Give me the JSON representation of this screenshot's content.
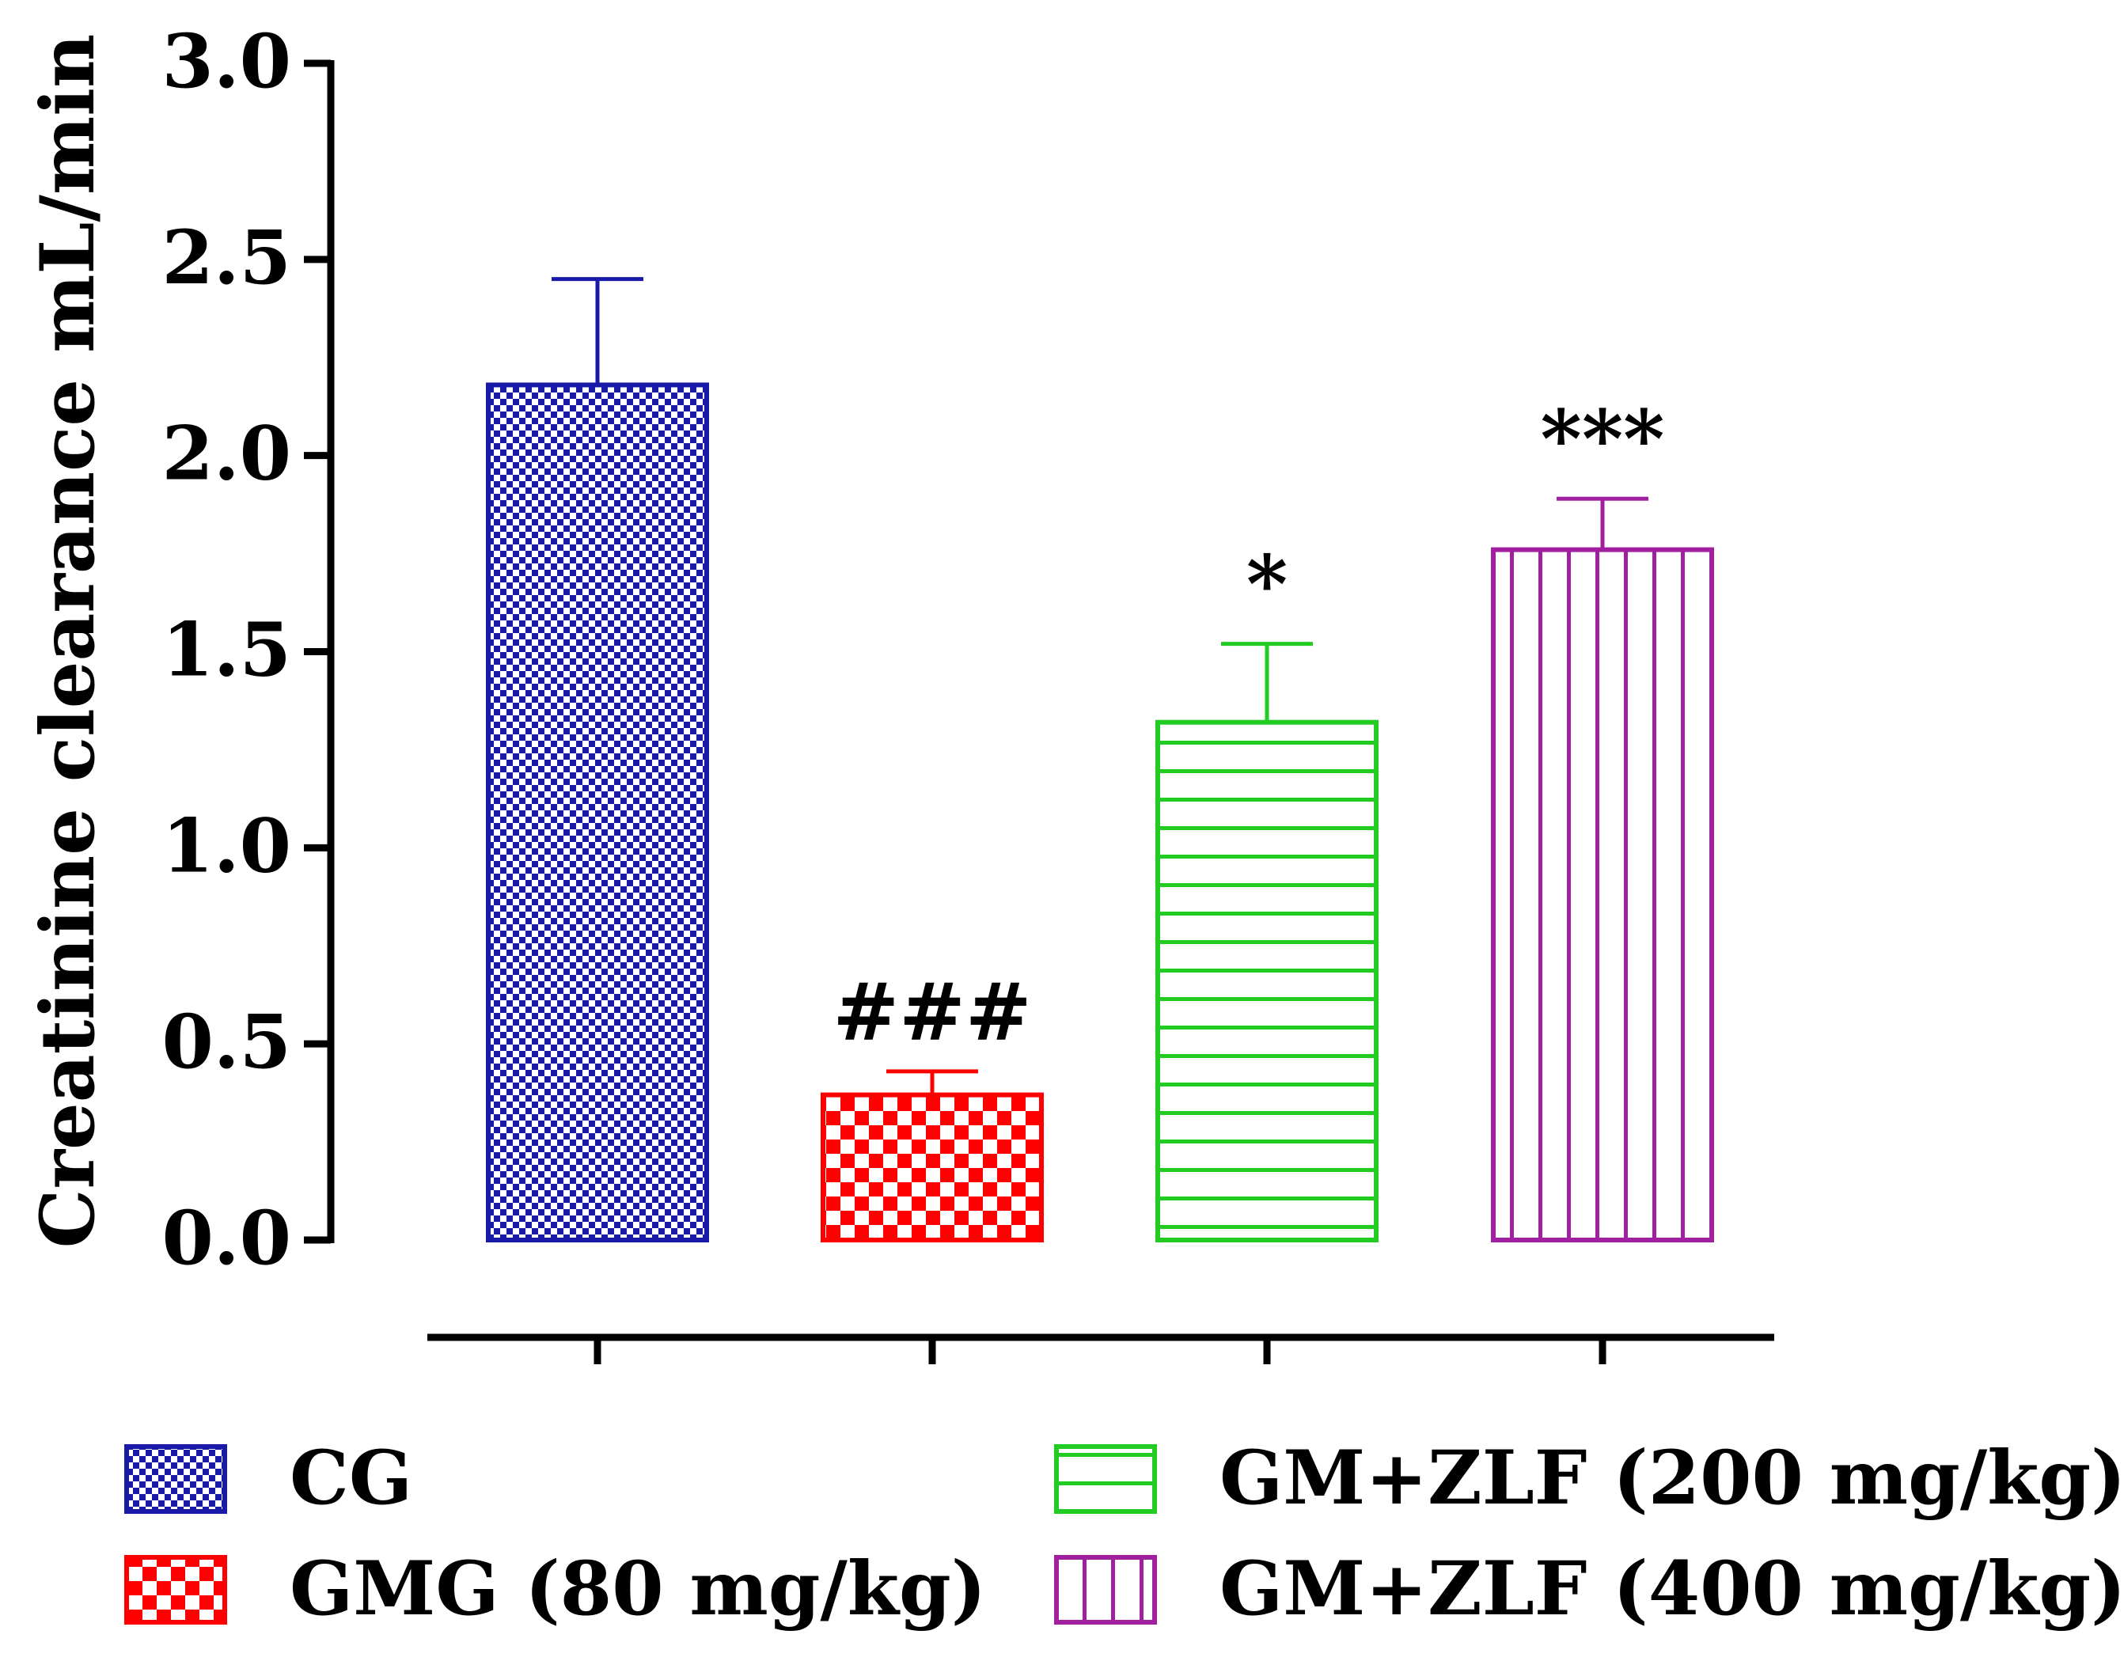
{
  "chart_data": {
    "type": "bar",
    "title": "",
    "xlabel": "",
    "ylabel": "Creatinine clearance mL/min",
    "ylim": [
      0,
      3.0
    ],
    "yticks": [
      0.0,
      0.5,
      1.0,
      1.5,
      2.0,
      2.5,
      3.0
    ],
    "ytick_labels": [
      "0.0",
      "0.5",
      "1.0",
      "1.5",
      "2.0",
      "2.5",
      "3.0"
    ],
    "grid": false,
    "legend_position": "bottom",
    "categories": [
      "CG",
      "GMG (80 mg/kg)",
      "GM+ZLF (200 mg/kg)",
      "GM+ZLF (400 mg/kg)"
    ],
    "values": [
      2.18,
      0.37,
      1.32,
      1.76
    ],
    "errors": [
      0.27,
      0.06,
      0.2,
      0.13
    ],
    "annotations": [
      "",
      "###",
      "*",
      "***"
    ],
    "colors": [
      "#1a1aa8",
      "#ff0000",
      "#22cc22",
      "#a020a0"
    ],
    "patterns": [
      "fine-check",
      "checker",
      "horizontal",
      "vertical"
    ]
  }
}
